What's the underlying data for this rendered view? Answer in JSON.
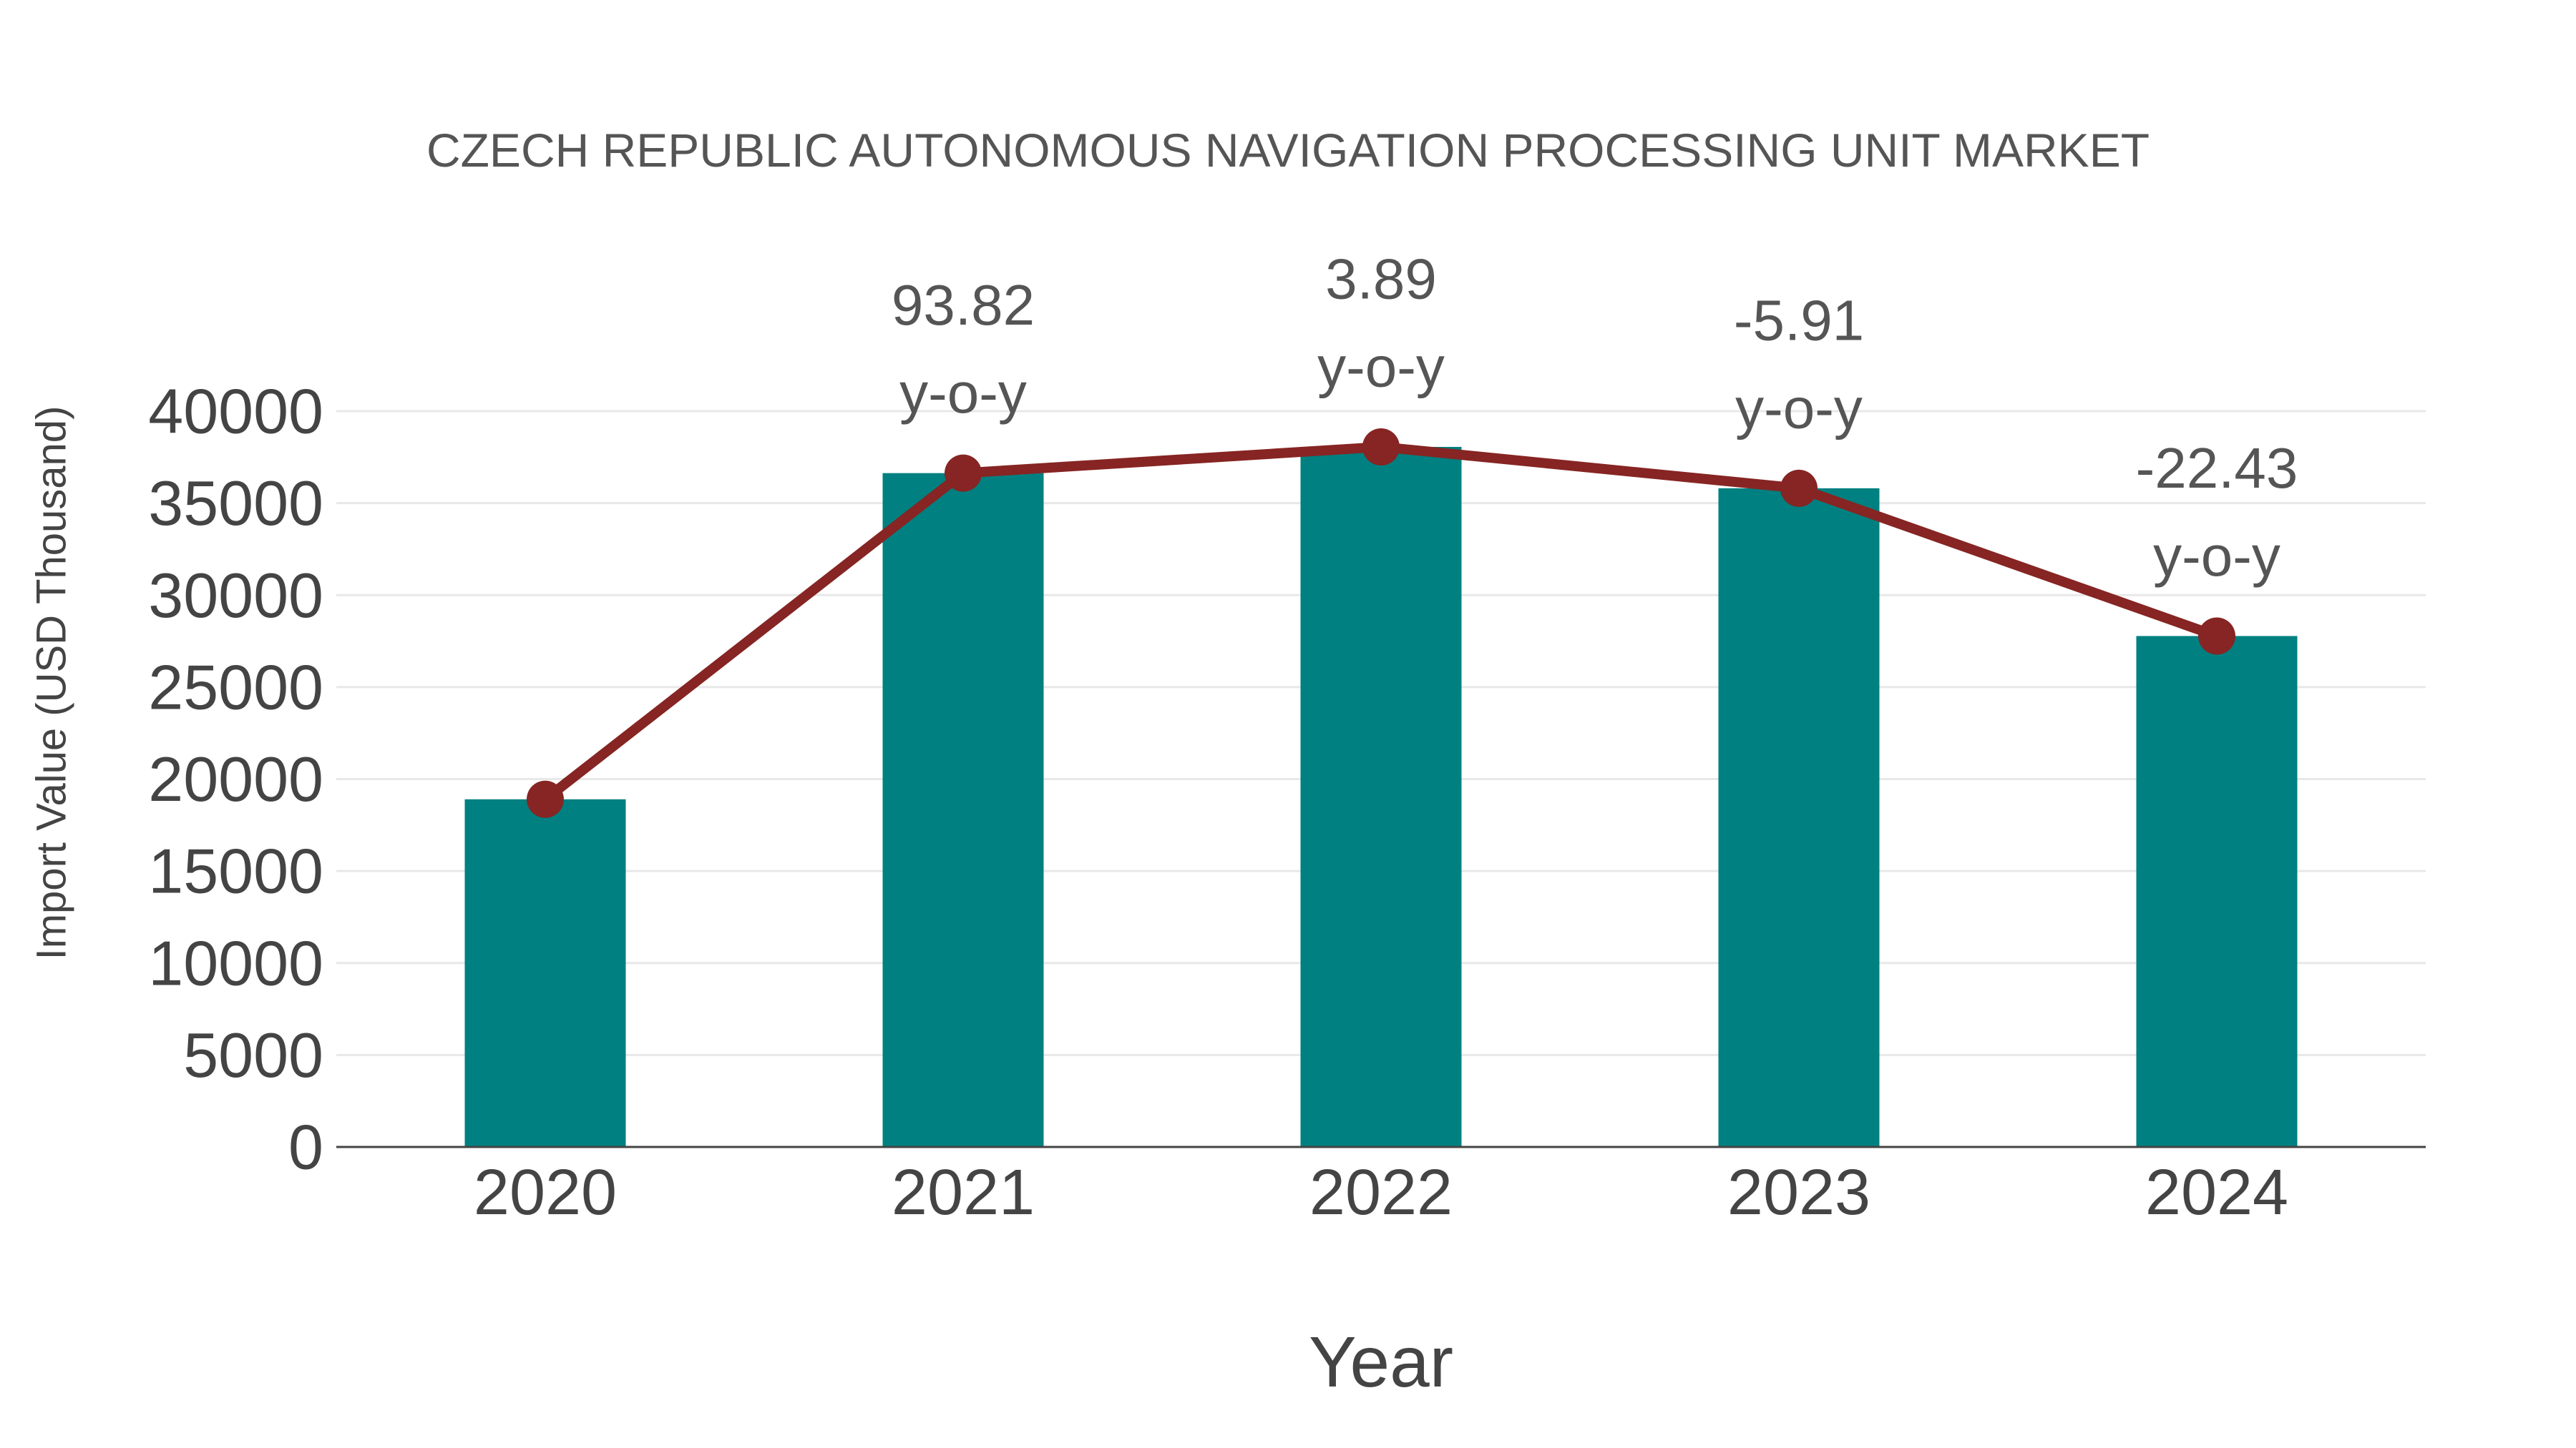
{
  "title": "CZECH REPUBLIC AUTONOMOUS NAVIGATION PROCESSING UNIT MARKET",
  "chart_data": {
    "type": "bar",
    "title": "CZECH REPUBLIC AUTONOMOUS NAVIGATION PROCESSING UNIT MARKET",
    "categories": [
      "2020",
      "2021",
      "2022",
      "2023",
      "2024"
    ],
    "series": [
      {
        "name": "Import Value",
        "type": "bar",
        "values": [
          18900,
          36632,
          38057,
          35808,
          27776
        ]
      },
      {
        "name": "Import Value trend",
        "type": "line",
        "values": [
          18900,
          36632,
          38057,
          35808,
          27776
        ]
      }
    ],
    "annotations": [
      {
        "category": "2021",
        "value_label": "93.82",
        "suffix_label": "y-o-y"
      },
      {
        "category": "2022",
        "value_label": "3.89",
        "suffix_label": "y-o-y"
      },
      {
        "category": "2023",
        "value_label": "-5.91",
        "suffix_label": "y-o-y"
      },
      {
        "category": "2024",
        "value_label": "-22.43",
        "suffix_label": "y-o-y"
      }
    ],
    "xlabel": "Year",
    "ylabel": "Import Value (USD Thousand)",
    "ylim": [
      0,
      40000
    ],
    "ytick_step": 5000,
    "ytick_labels": [
      "0",
      "5000",
      "10000",
      "15000",
      "20000",
      "25000",
      "30000",
      "35000",
      "40000"
    ],
    "grid": "horizontal",
    "legend": "none"
  },
  "colors": {
    "bar": "#008080",
    "line": "#862523",
    "marker": "#862523",
    "gridline": "#e8e8e8",
    "axis_line": "#444444",
    "tick_text": "#444444",
    "title_text": "#555555",
    "annotation_text": "#555555",
    "background": "#ffffff"
  }
}
